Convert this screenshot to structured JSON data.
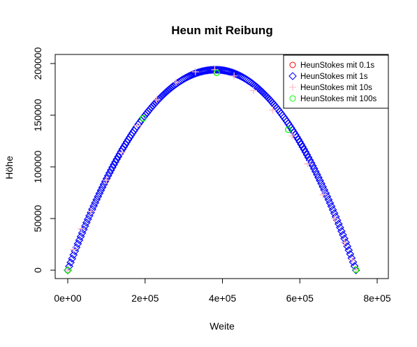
{
  "chart_data": {
    "type": "scatter",
    "title": "Heun mit Reibung",
    "xlabel": "Weite",
    "ylabel": "Höhe",
    "xlim": [
      0,
      800000
    ],
    "ylim": [
      0,
      200000
    ],
    "x_ticks": [
      {
        "value": 0,
        "label": "0e+00"
      },
      {
        "value": 200000,
        "label": "2e+05"
      },
      {
        "value": 400000,
        "label": "4e+05"
      },
      {
        "value": 600000,
        "label": "6e+05"
      },
      {
        "value": 800000,
        "label": "8e+05"
      }
    ],
    "y_ticks": [
      {
        "value": 0,
        "label": "0"
      },
      {
        "value": 50000,
        "label": "50000"
      },
      {
        "value": 100000,
        "label": "100000"
      },
      {
        "value": 150000,
        "label": "150000"
      },
      {
        "value": 200000,
        "label": "200000"
      }
    ],
    "grid": false,
    "legend_position": "top-right",
    "series": [
      {
        "name": "HeunStokes mit 0.1s",
        "marker": "circle",
        "color": "#ff0000",
        "points": [
          [
            0,
            0
          ],
          [
            745000,
            500
          ]
        ]
      },
      {
        "name": "HeunStokes mit 1s",
        "marker": "diamond",
        "color": "#0000ff",
        "curve": {
          "x_start": 0,
          "x_peak": 382000,
          "y_peak": 194000,
          "x_end": 745000
        },
        "point_count": 200
      },
      {
        "name": "HeunStokes mit 10s",
        "marker": "plus",
        "color": "#ffb6c1",
        "points": [
          [
            0,
            0
          ],
          [
            15000,
            20000
          ],
          [
            35000,
            40000
          ],
          [
            60000,
            57000
          ],
          [
            100000,
            87000
          ],
          [
            140000,
            114000
          ],
          [
            180000,
            140000
          ],
          [
            230000,
            165000
          ],
          [
            280000,
            182000
          ],
          [
            330000,
            192000
          ],
          [
            380000,
            194000
          ],
          [
            430000,
            188000
          ],
          [
            480000,
            174000
          ],
          [
            530000,
            155000
          ],
          [
            580000,
            130000
          ],
          [
            620000,
            103000
          ],
          [
            660000,
            73000
          ],
          [
            690000,
            50000
          ],
          [
            715000,
            27000
          ],
          [
            735000,
            10000
          ],
          [
            745000,
            500
          ]
        ]
      },
      {
        "name": "HeunStokes mit 100s",
        "marker": "circle",
        "color": "#00ff00",
        "points": [
          [
            0,
            0
          ],
          [
            195000,
            147000
          ],
          [
            385000,
            191000
          ],
          [
            570000,
            136000
          ],
          [
            745000,
            500
          ]
        ]
      }
    ]
  }
}
